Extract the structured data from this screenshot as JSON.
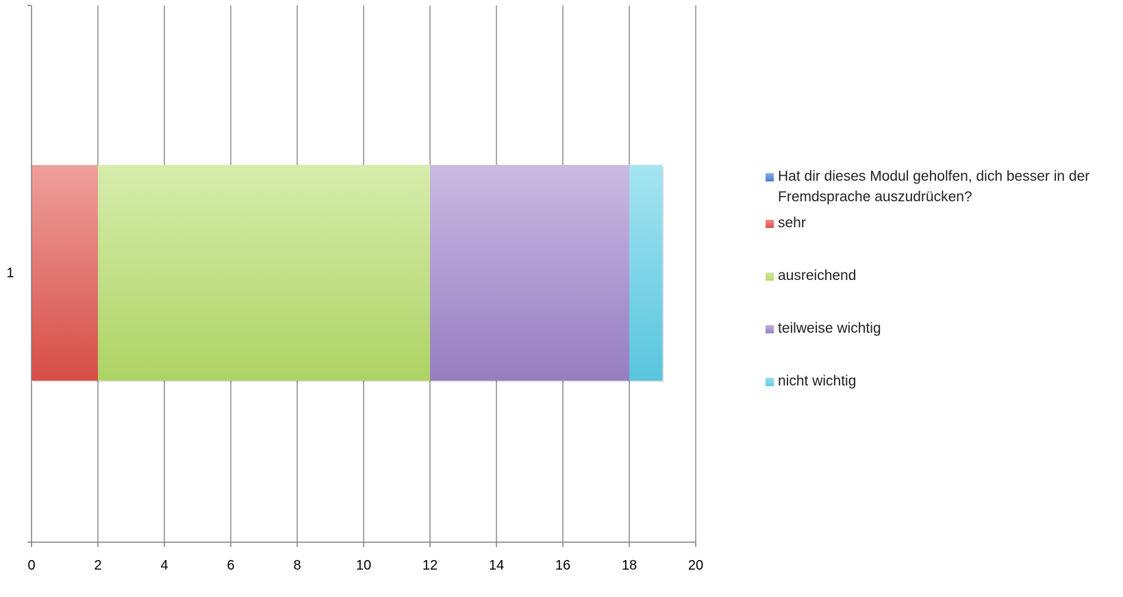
{
  "chart_data": {
    "type": "bar",
    "orientation": "horizontal",
    "stacked": true,
    "categories": [
      "1"
    ],
    "series": [
      {
        "name": "Hat dir dieses Modul geholfen, dich besser in der Fremdsprache auszudrücken?",
        "values": [
          0
        ],
        "color": "#4a7fd1"
      },
      {
        "name": "sehr",
        "values": [
          2
        ],
        "color": "#e0504a"
      },
      {
        "name": "ausreichend",
        "values": [
          10
        ],
        "color": "#b5dc68"
      },
      {
        "name": "teilweise wichtig",
        "values": [
          6
        ],
        "color": "#9c82c9"
      },
      {
        "name": "nicht wichtig",
        "values": [
          1
        ],
        "color": "#5ccde6"
      }
    ],
    "x_ticks": [
      "0",
      "2",
      "4",
      "6",
      "8",
      "10",
      "12",
      "14",
      "16",
      "18",
      "20"
    ],
    "xlim": [
      0,
      20
    ],
    "grid": true,
    "legend_position": "right",
    "title": "",
    "xlabel": "",
    "ylabel": ""
  }
}
